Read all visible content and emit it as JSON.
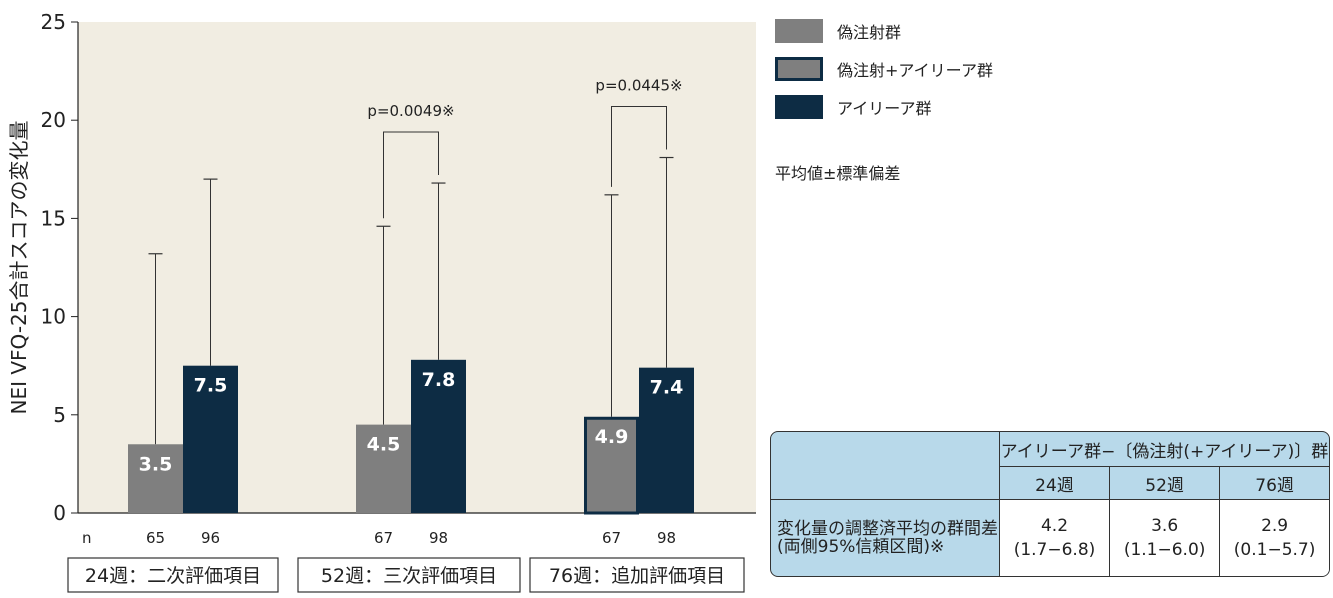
{
  "colors": {
    "sham": "#7f7f7f",
    "sham_eylea": "#7f7f7f",
    "sham_eylea_border": "#0d2c44",
    "eylea": "#0d2c44",
    "plot_bg": "#f1ede2"
  },
  "legend": [
    {
      "label": "偽注射群",
      "key": "sham"
    },
    {
      "label": "偽注射+アイリーア群",
      "key": "sham_eylea"
    },
    {
      "label": "アイリーア群",
      "key": "eylea"
    }
  ],
  "note": "平均値±標準偏差",
  "chart_data": {
    "type": "bar",
    "ylabel": "NEI VFQ-25合計スコアの変化量",
    "ylim": [
      0,
      25
    ],
    "yticks": [
      0,
      5,
      10,
      15,
      20,
      25
    ],
    "n_label": "n",
    "groups": [
      {
        "label": "24週：二次評価項目",
        "bars": [
          {
            "series": "sham",
            "value": 3.5,
            "value_label": "3.5",
            "sd_upper": 13.2,
            "n": "65"
          },
          {
            "series": "eylea",
            "value": 7.5,
            "value_label": "7.5",
            "sd_upper": 17.0,
            "n": "96"
          }
        ]
      },
      {
        "label": "52週：三次評価項目",
        "pvalue": "p=0.0049※",
        "bars": [
          {
            "series": "sham",
            "value": 4.5,
            "value_label": "4.5",
            "sd_upper": 14.6,
            "n": "67"
          },
          {
            "series": "eylea",
            "value": 7.8,
            "value_label": "7.8",
            "sd_upper": 16.8,
            "n": "98"
          }
        ]
      },
      {
        "label": "76週：追加評価項目",
        "pvalue": "p=0.0445※",
        "bars": [
          {
            "series": "sham_eylea",
            "value": 4.9,
            "value_label": "4.9",
            "sd_upper": 16.2,
            "n": "67"
          },
          {
            "series": "eylea",
            "value": 7.4,
            "value_label": "7.4",
            "sd_upper": 18.1,
            "n": "98"
          }
        ]
      }
    ]
  },
  "table": {
    "header": "アイリーア群−〔偽注射(+アイリーア)〕群",
    "weeks": [
      "24週",
      "52週",
      "76週"
    ],
    "row_label_line1": "変化量の調整済平均の群間差",
    "row_label_line2": "(両側95%信頼区間)※",
    "values": [
      {
        "est": "4.2",
        "ci": "(1.7−6.8)"
      },
      {
        "est": "3.6",
        "ci": "(1.1−6.0)"
      },
      {
        "est": "2.9",
        "ci": "(0.1−5.7)"
      }
    ]
  }
}
